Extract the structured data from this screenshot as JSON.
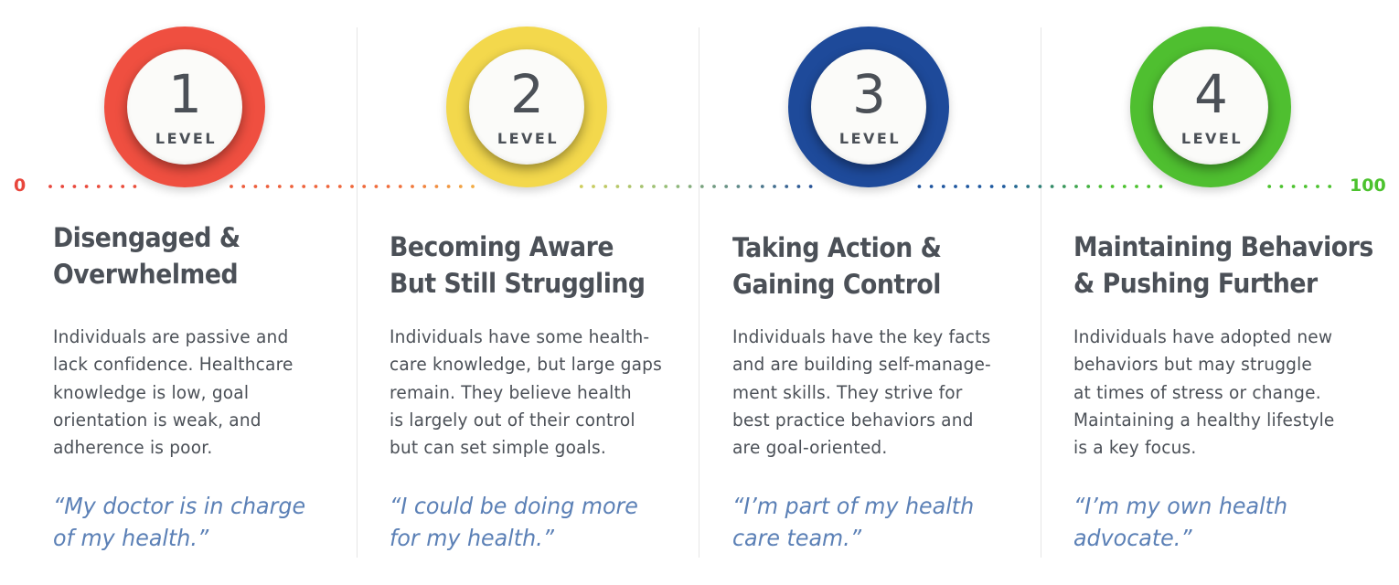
{
  "scale": {
    "start_label": "0",
    "end_label": "100",
    "start_color": "#e8463c",
    "end_color": "#4cc22e"
  },
  "levels": [
    {
      "number": "1",
      "label": "LEVEL",
      "color": "#ef4f40",
      "title": [
        "Disengaged &",
        "Overwhelmed"
      ],
      "description": [
        "Individuals are passive and",
        "lack confidence. Healthcare",
        "knowledge is low, goal",
        "orientation is weak, and",
        "adherence is poor."
      ],
      "quote": [
        "“My doctor is in charge",
        "of my health.”"
      ]
    },
    {
      "number": "2",
      "label": "LEVEL",
      "color": "#f3d84c",
      "title": [
        "Becoming Aware",
        "But Still Struggling"
      ],
      "description": [
        "Individuals have some health-",
        "care knowledge, but large gaps",
        "remain. They believe health",
        "is largely out of their control",
        "but can set simple goals."
      ],
      "quote": [
        "“I could be doing more",
        "for my health.”"
      ]
    },
    {
      "number": "3",
      "label": "LEVEL",
      "color": "#1e4a9a",
      "title": [
        "Taking Action &",
        "Gaining Control"
      ],
      "description": [
        "Individuals have the key facts",
        "and are building self-manage-",
        "ment skills.  They strive for",
        "best practice behaviors and",
        "are goal-oriented."
      ],
      "quote": [
        "“I’m part of my health",
        "care team.”"
      ]
    },
    {
      "number": "4",
      "label": "LEVEL",
      "color": "#4fbf30",
      "title": [
        "Maintaining Behaviors",
        "& Pushing Further"
      ],
      "description": [
        "Individuals have adopted new",
        "behaviors but may struggle",
        "at times of stress or change.",
        "Maintaining a healthy lifestyle",
        "is a key focus."
      ],
      "quote": [
        "“I’m my own health",
        "advocate.”"
      ]
    }
  ]
}
